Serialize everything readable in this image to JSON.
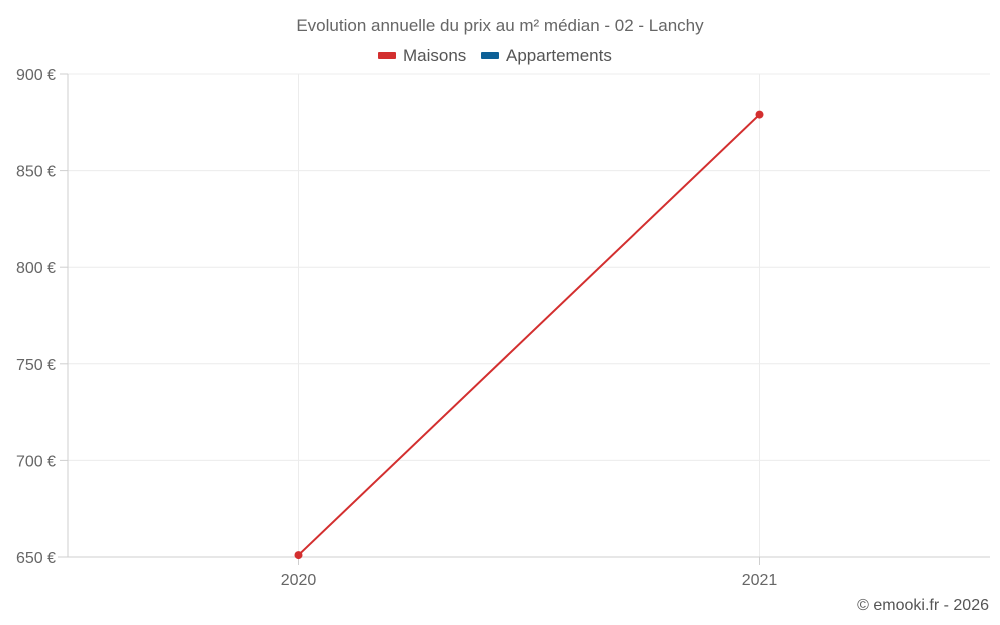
{
  "chart_data": {
    "type": "line",
    "title": "Evolution annuelle du prix au m² médian - 02 - Lanchy",
    "categories": [
      "2020",
      "2021"
    ],
    "series": [
      {
        "name": "Maisons",
        "color": "#d32f2f",
        "values": [
          651,
          879
        ]
      },
      {
        "name": "Appartements",
        "color": "#0d6096",
        "values": [
          null,
          null
        ]
      }
    ],
    "ylim": [
      650,
      900
    ],
    "yticks": [
      650,
      700,
      750,
      800,
      850,
      900
    ],
    "ytick_labels": [
      "650 €",
      "700 €",
      "750 €",
      "800 €",
      "850 €",
      "900 €"
    ],
    "grid": true,
    "legend": "top-center"
  },
  "footer": {
    "credit": "© emooki.fr - 2026"
  }
}
